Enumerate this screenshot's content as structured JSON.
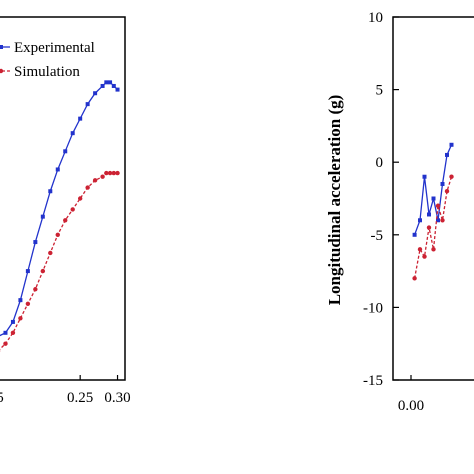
{
  "chart_data": [
    {
      "type": "line",
      "title": "",
      "xlabel": "",
      "ylabel": "",
      "x_ticks_visible": [
        "0.25",
        "0.30"
      ],
      "x_tick_values": [
        0.25,
        0.3
      ],
      "partial_tick_label": "5",
      "xlim": [
        0.14,
        0.31
      ],
      "ylim": [
        0,
        1
      ],
      "legend": {
        "placement": "top-left",
        "entries": [
          "Experimental",
          "Simulation"
        ]
      },
      "series": [
        {
          "name": "Experimental",
          "color": "#2233cc",
          "style": "solid",
          "marker": "square",
          "x": [
            0.14,
            0.15,
            0.16,
            0.17,
            0.18,
            0.19,
            0.2,
            0.21,
            0.22,
            0.23,
            0.24,
            0.25,
            0.26,
            0.27,
            0.28,
            0.285,
            0.29,
            0.295,
            0.3
          ],
          "y": [
            0.12,
            0.13,
            0.16,
            0.22,
            0.3,
            0.38,
            0.45,
            0.52,
            0.58,
            0.63,
            0.68,
            0.72,
            0.76,
            0.79,
            0.81,
            0.82,
            0.82,
            0.81,
            0.8
          ]
        },
        {
          "name": "Simulation",
          "color": "#cc2233",
          "style": "dashed",
          "marker": "circle",
          "x": [
            0.14,
            0.15,
            0.16,
            0.17,
            0.18,
            0.19,
            0.2,
            0.21,
            0.22,
            0.23,
            0.24,
            0.25,
            0.26,
            0.27,
            0.28,
            0.285,
            0.29,
            0.295,
            0.3
          ],
          "y": [
            0.08,
            0.1,
            0.13,
            0.17,
            0.21,
            0.25,
            0.3,
            0.35,
            0.4,
            0.44,
            0.47,
            0.5,
            0.53,
            0.55,
            0.56,
            0.57,
            0.57,
            0.57,
            0.57
          ]
        }
      ]
    },
    {
      "type": "line",
      "title": "",
      "xlabel": "",
      "ylabel": "Longitudinal acceleration (g)",
      "y_ticks": [
        "10",
        "5",
        "0",
        "-5",
        "-10",
        "-15"
      ],
      "y_tick_values": [
        10,
        5,
        0,
        -5,
        -10,
        -15
      ],
      "x_ticks_visible": [
        "0.00"
      ],
      "x_tick_values": [
        0.0
      ],
      "ylim": [
        -15,
        10
      ],
      "xlim": [
        -0.02,
        0.08
      ],
      "series": [
        {
          "name": "Experimental",
          "color": "#2233cc",
          "style": "solid",
          "marker": "square",
          "x": [
            0.004,
            0.01,
            0.015,
            0.02,
            0.025,
            0.03,
            0.035,
            0.04,
            0.045
          ],
          "y": [
            -5.0,
            -4.0,
            -1.0,
            -3.6,
            -2.5,
            -4.0,
            -1.5,
            0.5,
            1.2
          ]
        },
        {
          "name": "Simulation",
          "color": "#cc2233",
          "style": "dashed",
          "marker": "circle",
          "x": [
            0.004,
            0.01,
            0.015,
            0.02,
            0.025,
            0.03,
            0.035,
            0.04,
            0.045
          ],
          "y": [
            -8.0,
            -6.0,
            -6.5,
            -4.5,
            -6.0,
            -3.0,
            -4.0,
            -2.0,
            -1.0
          ]
        }
      ]
    }
  ]
}
